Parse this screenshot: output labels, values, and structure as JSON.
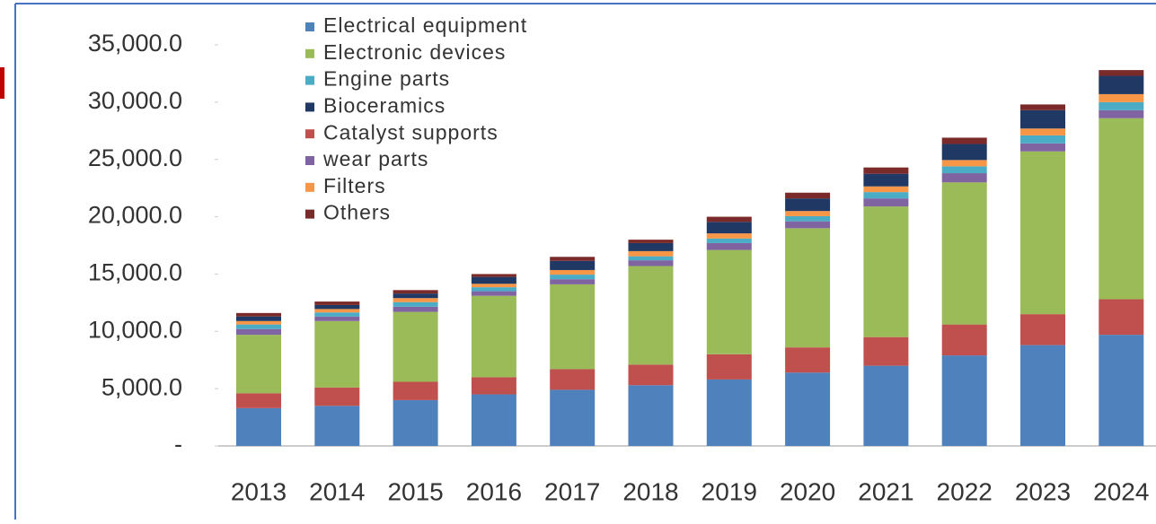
{
  "chart_data": {
    "type": "bar",
    "stacked": true,
    "categories": [
      "2013",
      "2014",
      "2015",
      "2016",
      "2017",
      "2018",
      "2019",
      "2020",
      "2021",
      "2022",
      "2023",
      "2024"
    ],
    "series": [
      {
        "name": "Electrical equipment",
        "color": "#4f81bd",
        "values": [
          3300,
          3500,
          4000,
          4500,
          4900,
          5300,
          5800,
          6400,
          7000,
          7900,
          8800,
          9700
        ]
      },
      {
        "name": "Electronic devices",
        "color": "#9bbb59",
        "values": [
          5100,
          5800,
          6100,
          7100,
          7400,
          8600,
          9100,
          10400,
          11400,
          12400,
          14200,
          15800
        ]
      },
      {
        "name": "Engine parts",
        "color": "#4bacc6",
        "values": [
          400,
          350,
          400,
          350,
          400,
          350,
          400,
          450,
          550,
          600,
          700,
          700
        ]
      },
      {
        "name": "Bioceramics",
        "color": "#1f3864",
        "values": [
          400,
          350,
          400,
          600,
          800,
          700,
          1000,
          1100,
          1100,
          1400,
          1600,
          1600
        ]
      },
      {
        "name": "Catalyst supports",
        "color": "#c0504d",
        "values": [
          1300,
          1600,
          1600,
          1500,
          1800,
          1800,
          2200,
          2200,
          2500,
          2700,
          2700,
          3100
        ]
      },
      {
        "name": "wear parts",
        "color": "#8064a2",
        "values": [
          500,
          400,
          450,
          400,
          450,
          500,
          600,
          600,
          700,
          800,
          700,
          700
        ]
      },
      {
        "name": "Filters",
        "color": "#f79646",
        "values": [
          300,
          300,
          350,
          300,
          400,
          450,
          450,
          450,
          500,
          550,
          600,
          700
        ]
      },
      {
        "name": "Others",
        "color": "#7b2a2a",
        "values": [
          300,
          300,
          300,
          250,
          350,
          300,
          450,
          500,
          550,
          550,
          500,
          500
        ]
      }
    ],
    "ylim": [
      0,
      35000
    ],
    "yticks": [
      {
        "value": 0,
        "label": "-"
      },
      {
        "value": 5000,
        "label": "5,000.0"
      },
      {
        "value": 10000,
        "label": "10,000.0"
      },
      {
        "value": 15000,
        "label": "15,000.0"
      },
      {
        "value": 20000,
        "label": "20,000.0"
      },
      {
        "value": 25000,
        "label": "25,000.0"
      },
      {
        "value": 30000,
        "label": "30,000.0"
      },
      {
        "value": 35000,
        "label": "35,000.0"
      }
    ],
    "grid": false,
    "legend": "top"
  }
}
